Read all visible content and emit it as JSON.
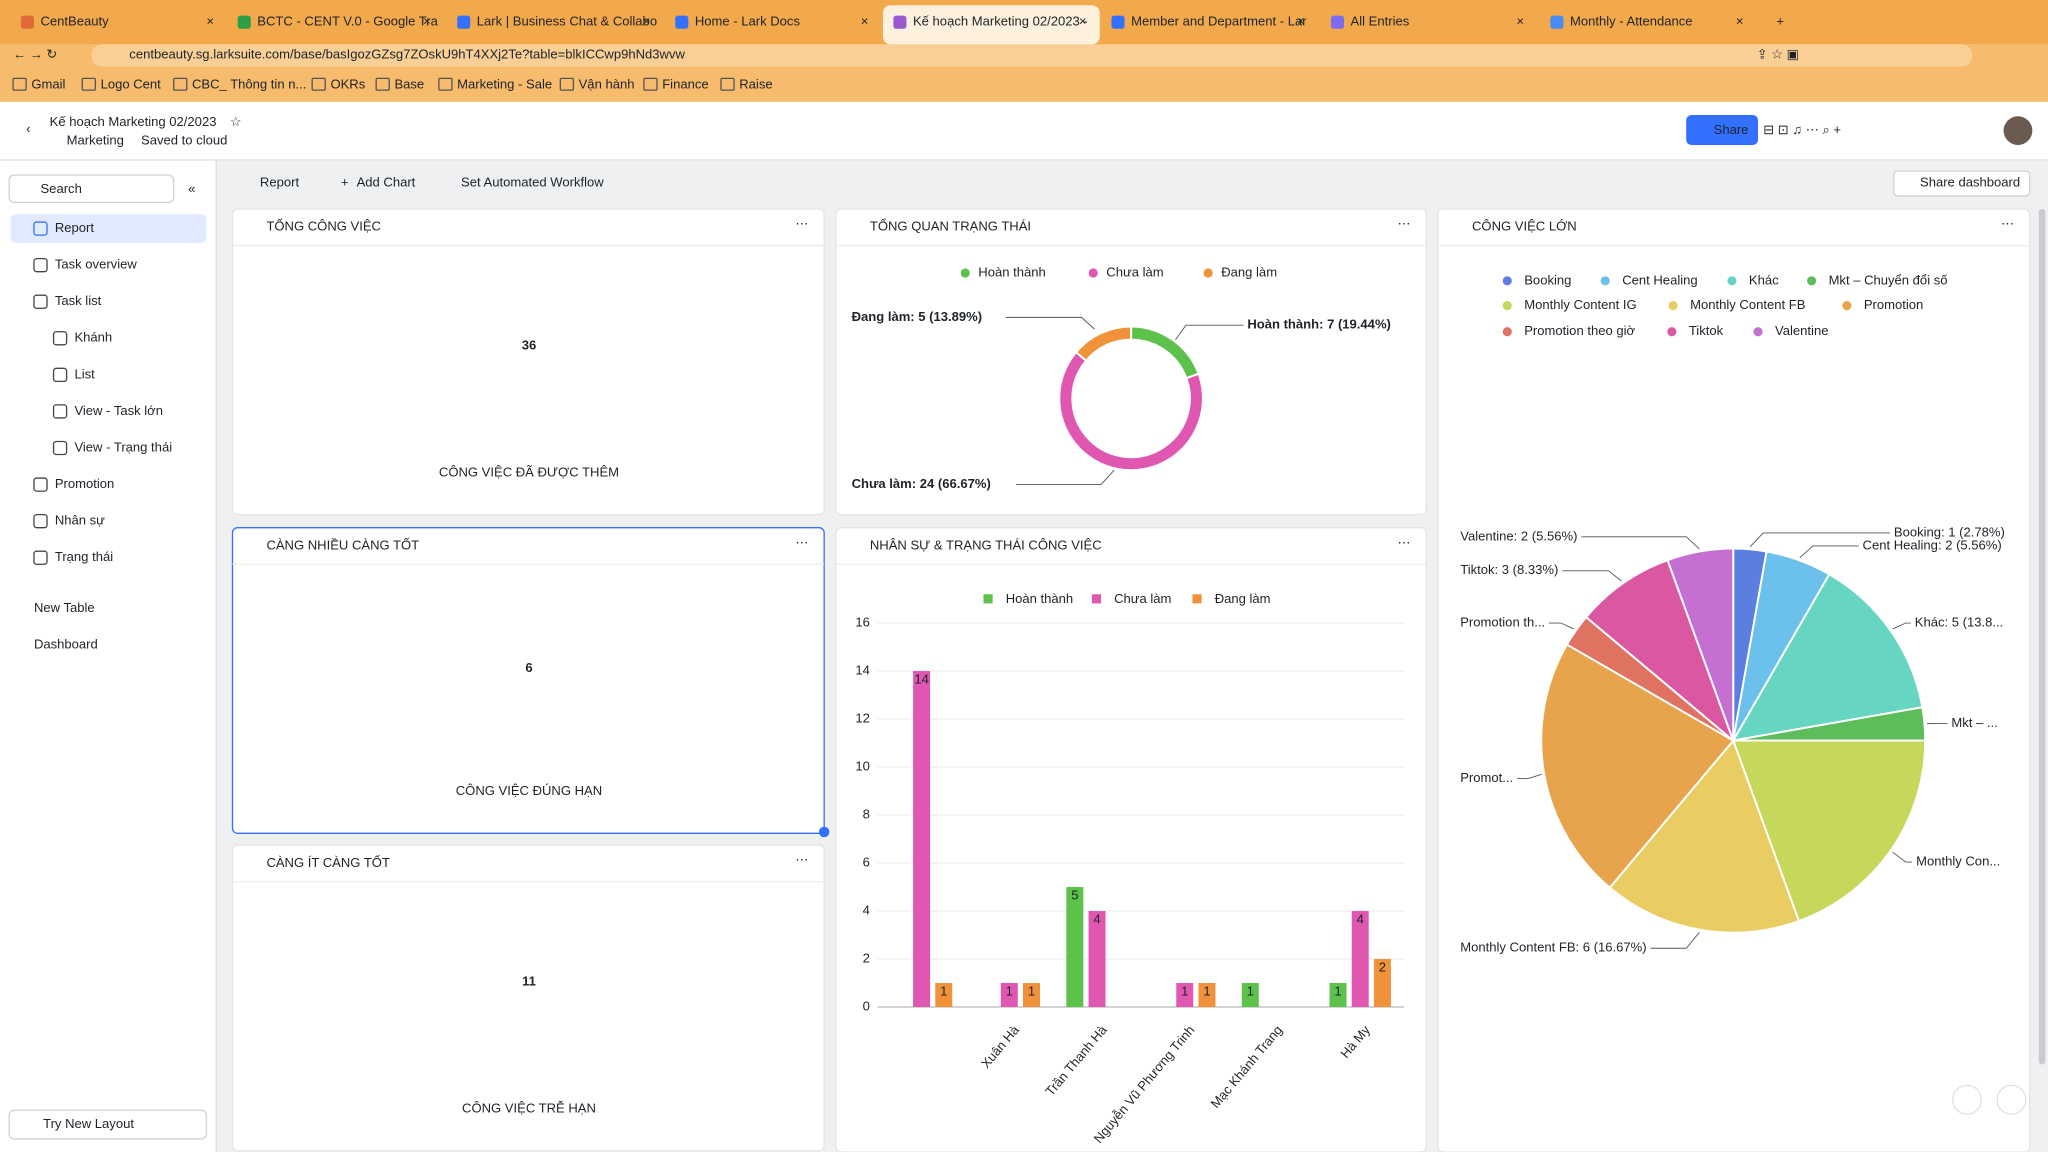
{
  "browser": {
    "tabs": [
      "CentBeauty",
      "BCTC - CENT V.0 - Google Tra",
      "Lark | Business Chat & Collabo",
      "Home - Lark Docs",
      "Kế hoạch Marketing 02/2023 -",
      "Member and Department - Lar",
      "All Entries",
      "Monthly - Attendance"
    ],
    "url": "centbeauty.sg.larksuite.com/base/basIgozGZsg7ZOskU9hT4XXj2Te?table=blkICCwp9hNd3wvw",
    "bookmarks": [
      "Gmail",
      "Logo Cent",
      "CBC_ Thông tin n...",
      "OKRs",
      "Base",
      "Marketing - Sale",
      "Vận hành",
      "Finance",
      "Raise"
    ]
  },
  "header": {
    "title": "Kế hoạch Marketing 02/2023",
    "folder": "Marketing",
    "status": "Saved to cloud",
    "share": "Share"
  },
  "sidebar": {
    "search": "Search",
    "items": [
      "Report",
      "Task overview",
      "Task list",
      "Khánh",
      "List",
      "View - Task lớn",
      "View - Trạng thái",
      "Promotion",
      "Nhân sự",
      "Trạng thái"
    ],
    "new_table": "New Table",
    "dashboard": "Dashboard",
    "try_layout": "Try New Layout"
  },
  "toolbar": {
    "report": "Report",
    "add_chart": "Add Chart",
    "workflow": "Set Automated Workflow",
    "share_dashboard": "Share dashboard"
  },
  "cards": [
    {
      "title": "TỔNG CÔNG VIỆC",
      "value": 36,
      "label": "CÔNG VIỆC ĐÃ ĐƯỢC THÊM"
    },
    {
      "title": "CÀNG NHIỀU CÀNG TỐT",
      "value": 6,
      "label": "CÔNG VIỆC ĐÚNG HẠN"
    },
    {
      "title": "CÀNG ÍT CÀNG TỐT",
      "value": 11,
      "label": "CÔNG VIỆC TRỄ HẠN"
    }
  ],
  "chart_data": [
    {
      "type": "donut",
      "title": "TỔNG QUAN TRẠNG THÁI",
      "categories": [
        "Hoàn thành",
        "Chưa làm",
        "Đang làm"
      ],
      "series": [
        {
          "values": [
            7,
            24,
            5
          ],
          "value_labels": [
            "Hoàn thành: 7 (19.44%)",
            "Chưa làm: 24 (66.67%)",
            "Đang làm: 5 (13.89%)"
          ],
          "colors": [
            "#5cc24c",
            "#e057b2",
            "#f0923a"
          ]
        }
      ]
    },
    {
      "type": "bar",
      "title": "NHÂN SỰ & TRẠNG THÁI CÔNG VIỆC",
      "categories": [
        null,
        "Xuân Hà",
        "Trần Thanh Hà",
        "Nguyễn Vũ Phương Trinh",
        "Mạc Khánh Trang",
        "Hà My"
      ],
      "series": [
        {
          "name": "Hoàn thành",
          "color": "#5cc24c",
          "values": [
            0,
            0,
            5,
            0,
            1,
            1
          ]
        },
        {
          "name": "Chưa làm",
          "color": "#e057b2",
          "values": [
            14,
            1,
            4,
            1,
            0,
            4
          ]
        },
        {
          "name": "Đang làm",
          "color": "#f0923a",
          "values": [
            1,
            1,
            0,
            1,
            0,
            2
          ]
        }
      ],
      "ylim": [
        0,
        16
      ],
      "yticks": [
        0,
        2,
        4,
        6,
        8,
        10,
        12,
        14,
        16
      ],
      "grid": true
    },
    {
      "type": "pie",
      "title": "CÔNG VIỆC LỚN",
      "categories": [
        "Booking",
        "Cent Healing",
        "Khác",
        "Mkt – Chuyển đổi số",
        "Monthly Content IG",
        "Monthly Content FB",
        "Promotion",
        "Promotion theo giờ",
        "Tiktok",
        "Valentine"
      ],
      "series": [
        {
          "values": [
            1,
            2,
            5,
            1,
            7,
            6,
            8,
            1,
            3,
            2
          ],
          "value_labels": [
            "Booking: 1 (2.78%)",
            "Cent Healing: 2 (5.56%)",
            "Khác: 5 (13.8...",
            "Mkt – ...",
            "Monthly Con...",
            "Monthly Content FB: 6 (16.67%)",
            "Promot...",
            "Promotion th...",
            "Tiktok: 3 (8.33%)",
            "Valentine: 2 (5.56%)"
          ],
          "colors": [
            "#5b7fe0",
            "#6cc0ec",
            "#66d6c2",
            "#5dbd5a",
            "#c6d75c",
            "#e9cc62",
            "#e8a44c",
            "#e07262",
            "#da58a2",
            "#c470d2"
          ]
        }
      ]
    }
  ]
}
